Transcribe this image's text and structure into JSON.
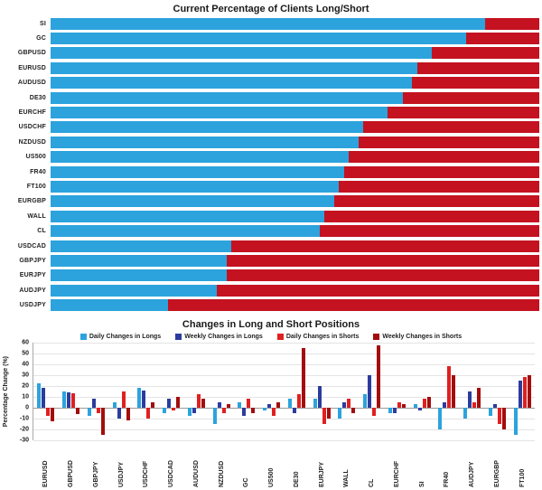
{
  "chart_data": [
    {
      "type": "bar",
      "orientation": "horizontal",
      "stacked": true,
      "title": "Current Percentage of Clients Long/Short",
      "xlim": [
        0,
        100
      ],
      "grid": false,
      "categories": [
        "SI",
        "GC",
        "GBPUSD",
        "EURUSD",
        "AUDUSD",
        "DE30",
        "EURCHF",
        "USDCHF",
        "NZDUSD",
        "US500",
        "FR40",
        "FT100",
        "EURGBP",
        "WALL",
        "CL",
        "USDCAD",
        "GBPJPY",
        "EURJPY",
        "AUDJPY",
        "USDJPY"
      ],
      "series": [
        {
          "name": "Long",
          "color": "#2CA3DD",
          "values": [
            89,
            85,
            78,
            75,
            74,
            72,
            69,
            64,
            63,
            61,
            60,
            59,
            58,
            56,
            55,
            37,
            36,
            36,
            34,
            24
          ]
        },
        {
          "name": "Short",
          "color": "#C41220",
          "values": [
            11,
            15,
            22,
            25,
            26,
            28,
            31,
            36,
            37,
            39,
            40,
            41,
            42,
            44,
            45,
            63,
            64,
            64,
            66,
            76
          ]
        }
      ]
    },
    {
      "type": "bar",
      "grouped": true,
      "title": "Changes in Long and Short Positions",
      "ylabel": "Percentage Change (%)",
      "ylim": [
        -30,
        60
      ],
      "ytick_step": 10,
      "grid": true,
      "legend_position": "top",
      "categories": [
        "EURUSD",
        "GBPUSD",
        "GBPJPY",
        "USDJPY",
        "USDCHF",
        "USDCAD",
        "AUDUSD",
        "NZDUSD",
        "GC",
        "US500",
        "DE30",
        "EURJPY",
        "WALL",
        "CL",
        "EURCHF",
        "SI",
        "FR40",
        "AUDJPY",
        "EURGBP",
        "FT100"
      ],
      "series": [
        {
          "name": "Daily Changes in Longs",
          "color": "#2CA3DD",
          "values": [
            22,
            15,
            -8,
            5,
            18,
            -5,
            -8,
            -15,
            5,
            -3,
            8,
            8,
            -10,
            12,
            -5,
            3,
            -20,
            -10,
            -8,
            -25
          ]
        },
        {
          "name": "Weekly Changes in Longs",
          "color": "#2B3C9E",
          "values": [
            18,
            14,
            8,
            -10,
            16,
            8,
            -5,
            5,
            -8,
            3,
            -5,
            20,
            5,
            30,
            -5,
            -3,
            5,
            15,
            3,
            25
          ]
        },
        {
          "name": "Daily Changes in Shorts",
          "color": "#E02020",
          "values": [
            -8,
            13,
            -5,
            15,
            -10,
            -3,
            12,
            -5,
            8,
            -8,
            12,
            -15,
            8,
            -8,
            5,
            8,
            38,
            5,
            -15,
            28
          ]
        },
        {
          "name": "Weekly Changes in Shorts",
          "color": "#A30D0D",
          "values": [
            -13,
            -6,
            -25,
            -12,
            5,
            10,
            8,
            3,
            -5,
            5,
            55,
            -10,
            -5,
            57,
            3,
            10,
            30,
            18,
            -20,
            30
          ]
        }
      ]
    }
  ]
}
